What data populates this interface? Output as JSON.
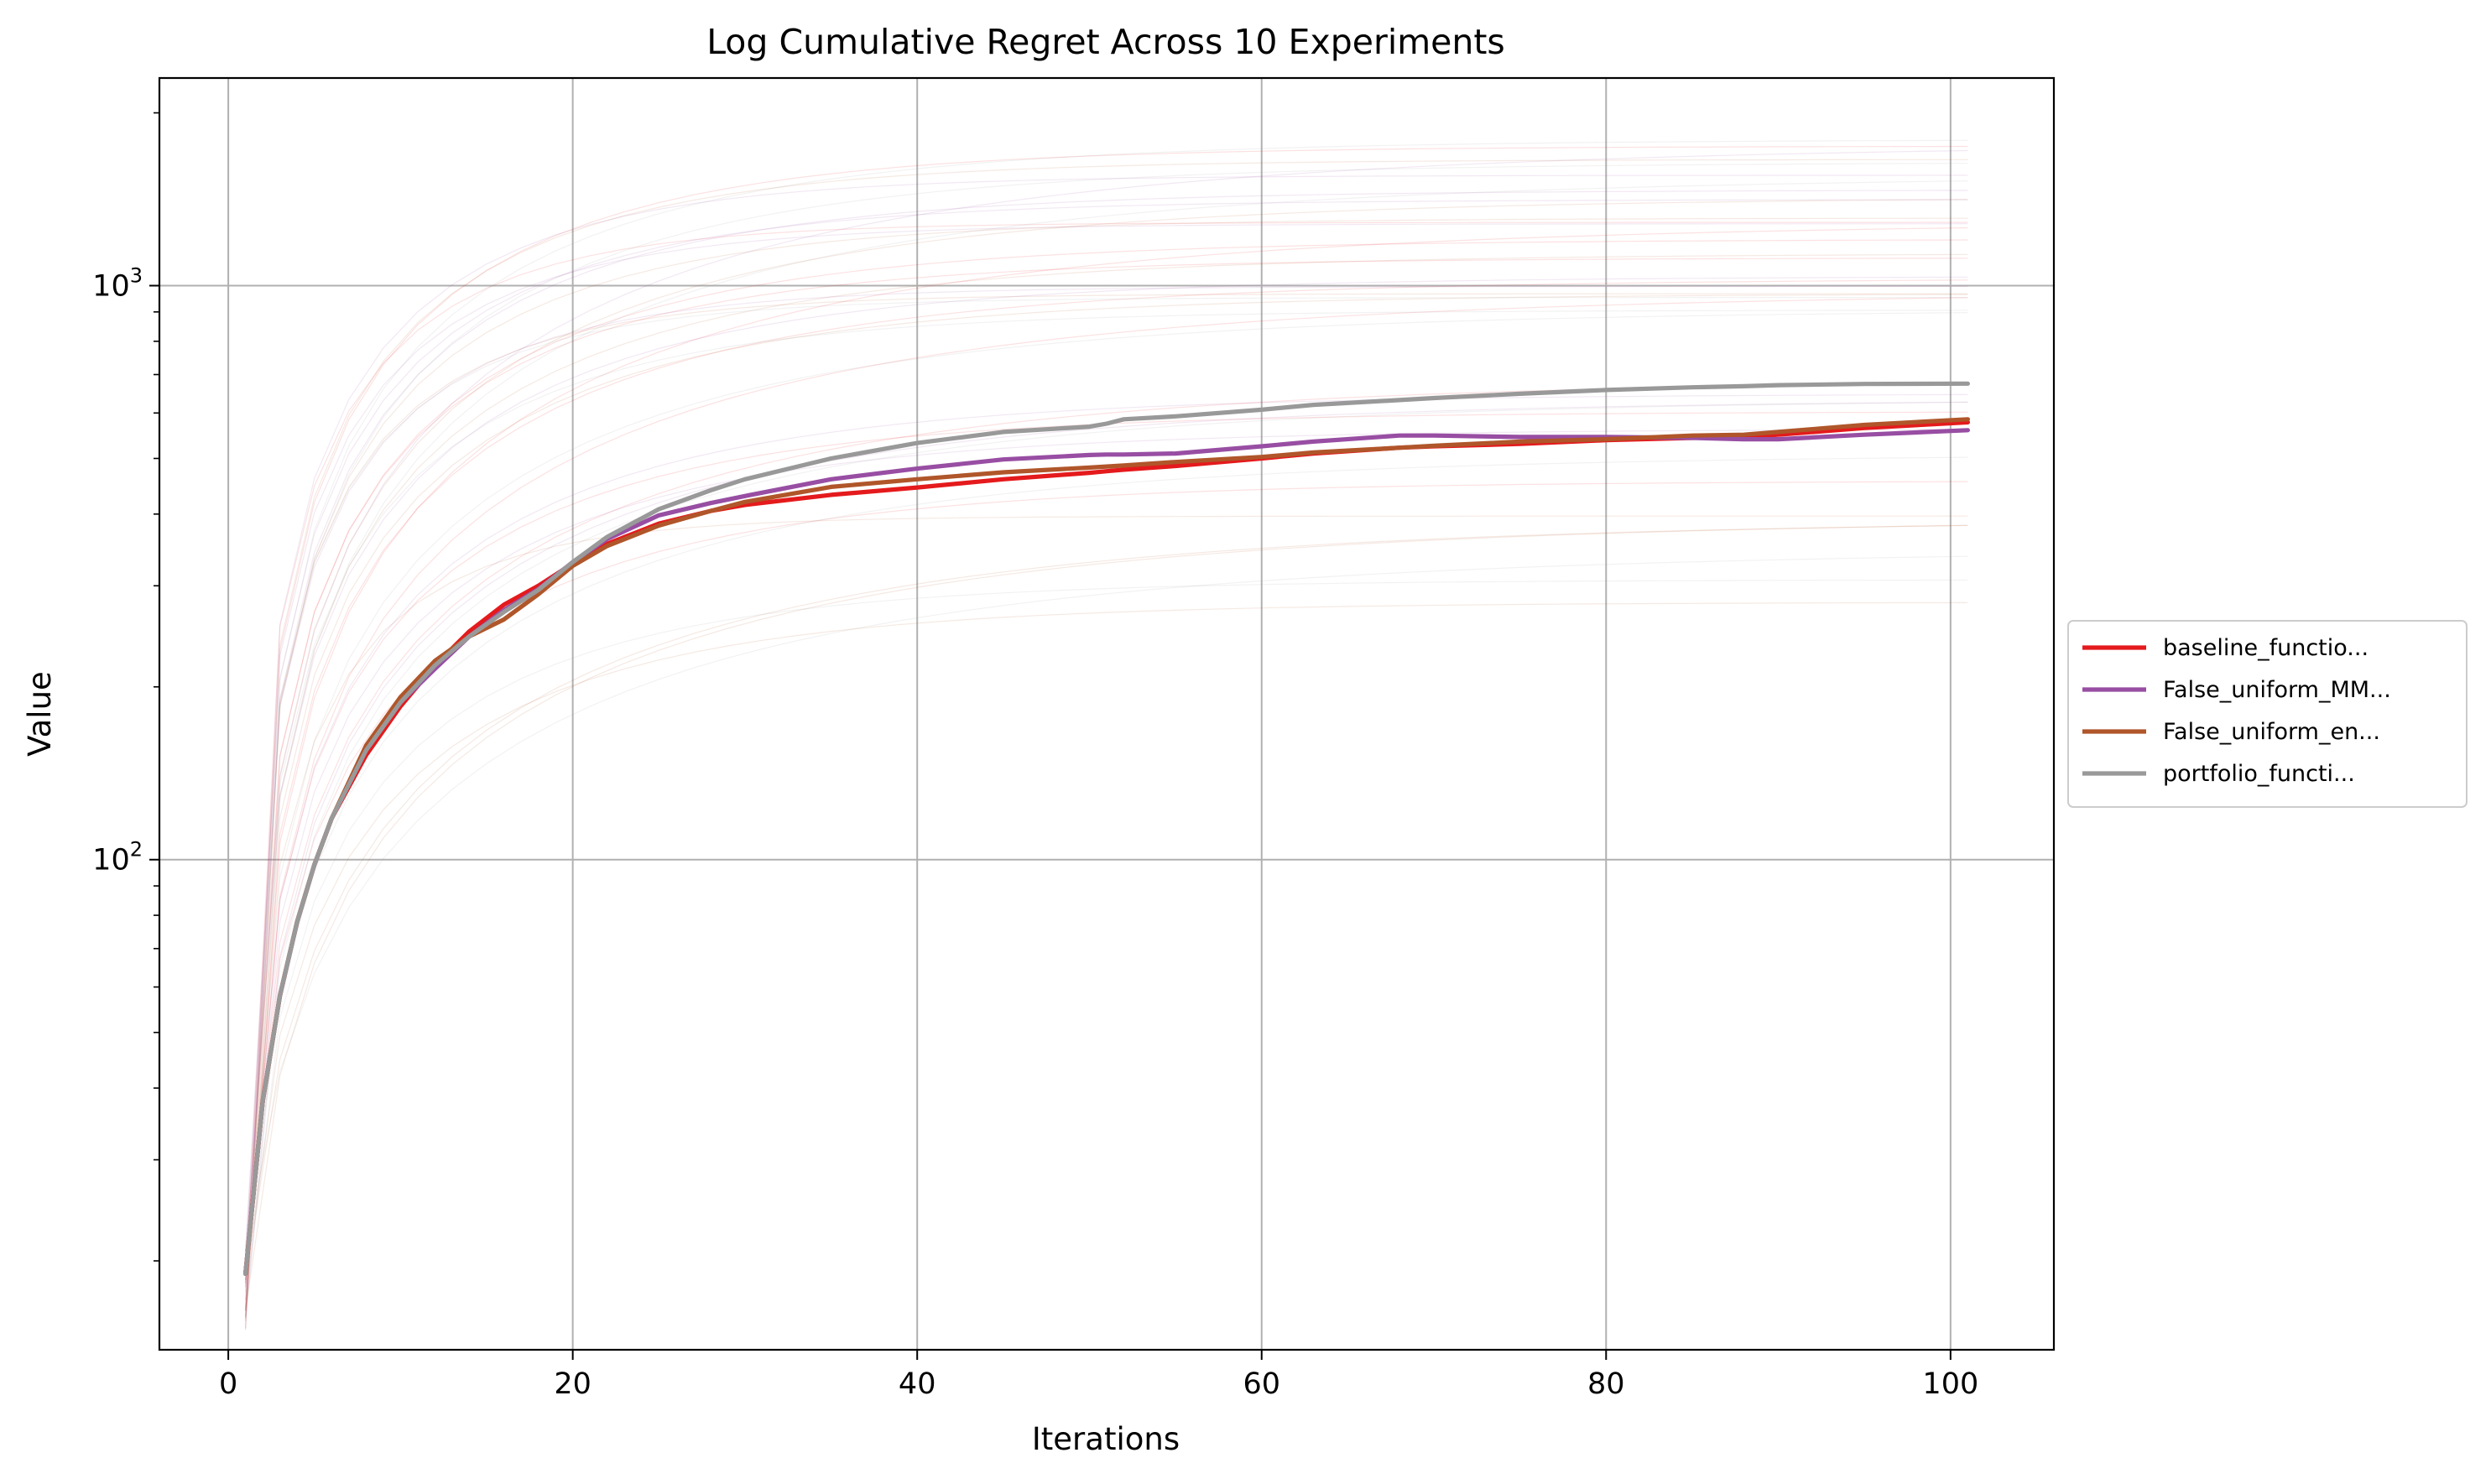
{
  "chart_data": {
    "type": "line",
    "title": "Log Cumulative Regret Across 10 Experiments",
    "xlabel": "Iterations",
    "ylabel": "Value",
    "yscale": "log",
    "xlim": [
      -4,
      106
    ],
    "ylim": [
      14,
      2300
    ],
    "grid": true,
    "legend_position": "right-outside",
    "x_ticks": [
      0,
      20,
      40,
      60,
      80,
      100
    ],
    "y_ticks": [
      {
        "value": 100,
        "base": "10",
        "exp": "2"
      },
      {
        "value": 1000,
        "base": "10",
        "exp": "3"
      }
    ],
    "x": [
      1,
      2,
      3,
      4,
      5,
      6,
      8,
      10,
      12,
      14,
      16,
      18,
      20,
      22,
      25,
      28,
      30,
      35,
      40,
      45,
      50,
      51,
      52,
      55,
      60,
      63,
      68,
      70,
      75,
      80,
      85,
      88,
      90,
      95,
      101
    ],
    "series": [
      {
        "name": "baseline_functio...",
        "color": "#e41a1c",
        "values": [
          19,
          38,
          58,
          78,
          98,
          118,
          152,
          185,
          218,
          250,
          278,
          300,
          328,
          355,
          385,
          405,
          415,
          432,
          445,
          460,
          472,
          475,
          478,
          485,
          500,
          510,
          522,
          525,
          530,
          538,
          543,
          546,
          550,
          565,
          578
        ]
      },
      {
        "name": "False_uniform_MM...",
        "color": "#984ea3",
        "values": [
          19,
          38,
          58,
          78,
          98,
          118,
          155,
          188,
          215,
          245,
          272,
          296,
          330,
          362,
          398,
          418,
          430,
          460,
          480,
          498,
          507,
          508,
          508,
          510,
          525,
          535,
          548,
          548,
          545,
          545,
          543,
          540,
          540,
          550,
          560
        ]
      },
      {
        "name": "False_uniform_en...",
        "color": "#b0562a",
        "values": [
          19,
          38,
          58,
          78,
          98,
          118,
          158,
          192,
          222,
          245,
          262,
          290,
          325,
          352,
          382,
          405,
          420,
          446,
          460,
          473,
          482,
          484,
          486,
          493,
          503,
          512,
          522,
          526,
          535,
          540,
          548,
          550,
          556,
          572,
          585
        ]
      },
      {
        "name": "portfolio_functi...",
        "color": "#999999",
        "values": [
          19,
          38,
          58,
          78,
          98,
          118,
          155,
          188,
          218,
          245,
          270,
          295,
          330,
          365,
          408,
          440,
          460,
          500,
          532,
          556,
          568,
          575,
          585,
          592,
          608,
          620,
          632,
          637,
          648,
          658,
          665,
          668,
          671,
          674,
          675
        ]
      }
    ]
  }
}
